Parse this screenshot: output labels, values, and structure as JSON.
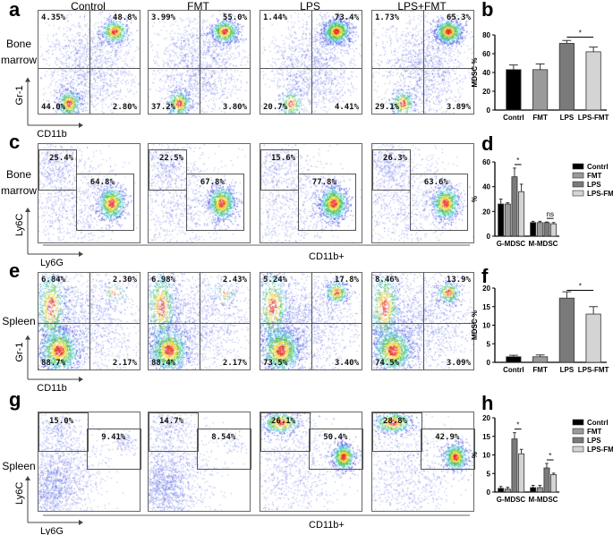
{
  "panel_letters": [
    "a",
    "b",
    "c",
    "d",
    "e",
    "f",
    "g",
    "h"
  ],
  "columns": [
    "Control",
    "FMT",
    "LPS",
    "LPS+FMT"
  ],
  "tissues": {
    "bone_marrow": "Bone\nmarrow",
    "spleen": "Spleen"
  },
  "axis_labels": {
    "gr1": "Gr-1",
    "cd11b": "CD11b",
    "ly6c": "Ly6C",
    "ly6g": "Ly6G",
    "cd11b_plus": "CD11b+"
  },
  "flow": {
    "a": [
      [
        "4.35%",
        "48.8%",
        "44.0%",
        "2.80%"
      ],
      [
        "3.99%",
        "55.0%",
        "37.2%",
        "3.80%"
      ],
      [
        "1.44%",
        "73.4%",
        "20.7%",
        "4.41%"
      ],
      [
        "1.73%",
        "65.3%",
        "29.1%",
        "3.89%"
      ]
    ],
    "c": [
      [
        "25.4%",
        "64.8%"
      ],
      [
        "22.5%",
        "67.8%"
      ],
      [
        "15.6%",
        "77.8%"
      ],
      [
        "26.3%",
        "63.6%"
      ]
    ],
    "e": [
      [
        "6.84%",
        "2.30%",
        "88.7%",
        "2.17%"
      ],
      [
        "6.98%",
        "2.43%",
        "88.4%",
        "2.17%"
      ],
      [
        "5.24%",
        "17.8%",
        "73.5%",
        "3.40%"
      ],
      [
        "8.46%",
        "13.9%",
        "74.5%",
        "3.09%"
      ]
    ],
    "g": [
      [
        "15.0%",
        "9.41%"
      ],
      [
        "14.7%",
        "8.54%"
      ],
      [
        "26.1%",
        "50.4%"
      ],
      [
        "28.8%",
        "42.9%"
      ]
    ]
  },
  "chart_data": [
    {
      "panel": "b",
      "type": "bar",
      "categories": [
        "Contrl",
        "FMT",
        "LPS",
        "LPS-FMT"
      ],
      "values": [
        43,
        43,
        71,
        62
      ],
      "errors": [
        5,
        6,
        3,
        5
      ],
      "ylabel": "MDSC %",
      "ylim": [
        0,
        80
      ],
      "yticks": [
        0,
        20,
        40,
        60,
        80
      ],
      "colors": [
        "#000000",
        "#9a9a9a",
        "#7a7a7a",
        "#d4d4d4"
      ],
      "significance": [
        {
          "between": [
            "LPS",
            "LPS-FMT"
          ],
          "label": "*"
        }
      ]
    },
    {
      "panel": "d",
      "type": "bar",
      "categories": [
        "G-MDSC",
        "M-MDSC"
      ],
      "series": [
        {
          "name": "Contrl",
          "values": [
            26,
            11
          ],
          "errors": [
            4,
            1
          ]
        },
        {
          "name": "FMT",
          "values": [
            26,
            11
          ],
          "errors": [
            1,
            1
          ]
        },
        {
          "name": "LPS",
          "values": [
            48,
            11
          ],
          "errors": [
            7,
            0.5
          ]
        },
        {
          "name": "LPS-FMT",
          "values": [
            36,
            10
          ],
          "errors": [
            6,
            1
          ]
        }
      ],
      "ylabel": "%",
      "ylim": [
        0,
        60
      ],
      "yticks": [
        0,
        20,
        40,
        60
      ],
      "colors": [
        "#000000",
        "#9a9a9a",
        "#7a7a7a",
        "#d4d4d4"
      ],
      "legend": "top-right",
      "significance": [
        {
          "group": "G-MDSC",
          "label": "*"
        },
        {
          "group": "M-MDSC",
          "label": "ns"
        }
      ]
    },
    {
      "panel": "f",
      "type": "bar",
      "categories": [
        "Contrl",
        "FMT",
        "LPS",
        "LPS-FMT"
      ],
      "values": [
        1.5,
        1.5,
        17.3,
        13
      ],
      "errors": [
        0.4,
        0.5,
        1.7,
        2
      ],
      "ylabel": "MDSC %",
      "ylim": [
        0,
        20
      ],
      "yticks": [
        0,
        5,
        10,
        15,
        20
      ],
      "colors": [
        "#000000",
        "#9a9a9a",
        "#7a7a7a",
        "#d4d4d4"
      ],
      "significance": [
        {
          "between": [
            "LPS",
            "LPS-FMT"
          ],
          "label": "*"
        }
      ]
    },
    {
      "panel": "h",
      "type": "bar",
      "categories": [
        "G-MDSC",
        "M-MDSC"
      ],
      "series": [
        {
          "name": "Contrl",
          "values": [
            1,
            1.2
          ],
          "errors": [
            0.5,
            0.6
          ]
        },
        {
          "name": "FMT",
          "values": [
            0.8,
            1.2
          ],
          "errors": [
            0.5,
            0.6
          ]
        },
        {
          "name": "LPS",
          "values": [
            14.3,
            6.5
          ],
          "errors": [
            1.7,
            1.2
          ]
        },
        {
          "name": "LPS-FMT",
          "values": [
            10.3,
            4.7
          ],
          "errors": [
            1.2,
            0.4
          ]
        }
      ],
      "ylabel": "%",
      "ylim": [
        0,
        20
      ],
      "yticks": [
        0,
        5,
        10,
        15,
        20
      ],
      "colors": [
        "#000000",
        "#9a9a9a",
        "#7a7a7a",
        "#d4d4d4"
      ],
      "legend": "top-right",
      "significance": [
        {
          "group": "G-MDSC",
          "label": "*"
        },
        {
          "group": "M-MDSC",
          "label": "*"
        }
      ]
    }
  ]
}
